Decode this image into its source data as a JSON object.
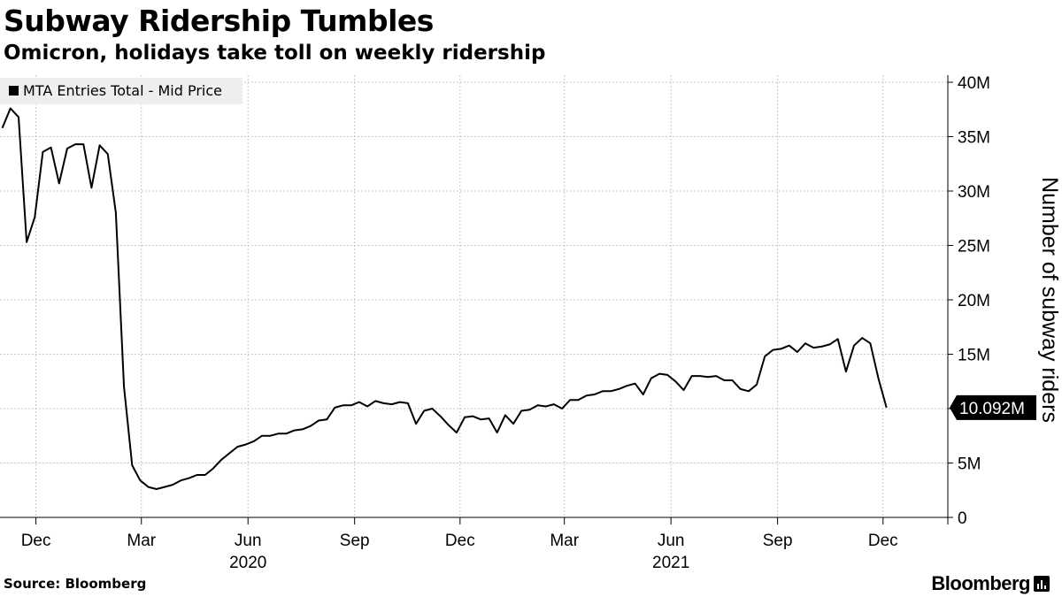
{
  "header": {
    "title": "Subway Ridership Tumbles",
    "subtitle": "Omicron, holidays take toll on weekly ridership"
  },
  "footer": {
    "source": "Source: Bloomberg",
    "brand": "Bloomberg",
    "brand_icon": "bloomberg-terminal-icon"
  },
  "chart_data": {
    "type": "line",
    "title": "Subway Ridership Tumbles",
    "subtitle": "Omicron, holidays take toll on weekly ridership",
    "ylabel": "Number of subway riders",
    "y_unit": "millions",
    "ylim": [
      0,
      40
    ],
    "y_ticks": [
      0,
      5,
      10,
      15,
      20,
      25,
      30,
      35,
      40
    ],
    "y_tick_labels": [
      "0",
      "5M",
      "10M",
      "15M",
      "20M",
      "25M",
      "30M",
      "35M",
      "40M"
    ],
    "x_ticks": [
      {
        "label": "Dec",
        "date": "2019-12-01"
      },
      {
        "label": "Mar",
        "date": "2020-03-01"
      },
      {
        "label": "Jun",
        "date": "2020-06-01"
      },
      {
        "label": "Sep",
        "date": "2020-09-01"
      },
      {
        "label": "Dec",
        "date": "2020-12-01"
      },
      {
        "label": "Mar",
        "date": "2021-03-01"
      },
      {
        "label": "Jun",
        "date": "2021-06-01"
      },
      {
        "label": "Sep",
        "date": "2021-09-01"
      },
      {
        "label": "Dec",
        "date": "2021-12-01"
      }
    ],
    "year_labels": [
      {
        "label": "2020",
        "date": "2020-06-01"
      },
      {
        "label": "2021",
        "date": "2021-06-01"
      }
    ],
    "xlim": [
      "2019-10-31",
      "2022-01-16"
    ],
    "grid": true,
    "legend_position": "top-left",
    "last_value_label": "10.092M",
    "series": [
      {
        "name": "MTA Entries Total - Mid Price",
        "color": "#000000",
        "points": [
          [
            "2019-11-02",
            35.8
          ],
          [
            "2019-11-09",
            37.6
          ],
          [
            "2019-11-16",
            36.8
          ],
          [
            "2019-11-23",
            25.3
          ],
          [
            "2019-11-30",
            27.6
          ],
          [
            "2019-12-07",
            33.6
          ],
          [
            "2019-12-14",
            34.0
          ],
          [
            "2019-12-21",
            30.7
          ],
          [
            "2019-12-28",
            33.9
          ],
          [
            "2020-01-04",
            34.3
          ],
          [
            "2020-01-11",
            34.3
          ],
          [
            "2020-01-18",
            30.3
          ],
          [
            "2020-01-25",
            34.2
          ],
          [
            "2020-02-01",
            33.4
          ],
          [
            "2020-02-08",
            28.0
          ],
          [
            "2020-02-15",
            12.0
          ],
          [
            "2020-02-22",
            4.8
          ],
          [
            "2020-02-29",
            3.4
          ],
          [
            "2020-03-07",
            2.8
          ],
          [
            "2020-03-14",
            2.6
          ],
          [
            "2020-03-21",
            2.8
          ],
          [
            "2020-03-28",
            3.0
          ],
          [
            "2020-04-04",
            3.4
          ],
          [
            "2020-04-11",
            3.6
          ],
          [
            "2020-04-18",
            3.9
          ],
          [
            "2020-04-25",
            3.9
          ],
          [
            "2020-05-02",
            4.5
          ],
          [
            "2020-05-09",
            5.3
          ],
          [
            "2020-05-16",
            5.9
          ],
          [
            "2020-05-23",
            6.5
          ],
          [
            "2020-05-30",
            6.7
          ],
          [
            "2020-06-06",
            7.0
          ],
          [
            "2020-06-13",
            7.5
          ],
          [
            "2020-06-20",
            7.5
          ],
          [
            "2020-06-27",
            7.7
          ],
          [
            "2020-07-04",
            7.7
          ],
          [
            "2020-07-11",
            8.0
          ],
          [
            "2020-07-18",
            8.1
          ],
          [
            "2020-07-25",
            8.4
          ],
          [
            "2020-08-01",
            8.9
          ],
          [
            "2020-08-08",
            9.0
          ],
          [
            "2020-08-15",
            10.1
          ],
          [
            "2020-08-22",
            10.3
          ],
          [
            "2020-08-29",
            10.3
          ],
          [
            "2020-09-05",
            10.6
          ],
          [
            "2020-09-12",
            10.2
          ],
          [
            "2020-09-19",
            10.7
          ],
          [
            "2020-09-26",
            10.5
          ],
          [
            "2020-10-03",
            10.4
          ],
          [
            "2020-10-10",
            10.6
          ],
          [
            "2020-10-17",
            10.5
          ],
          [
            "2020-10-24",
            8.6
          ],
          [
            "2020-10-31",
            9.8
          ],
          [
            "2020-11-07",
            10.0
          ],
          [
            "2020-11-14",
            9.3
          ],
          [
            "2020-11-21",
            8.5
          ],
          [
            "2020-11-28",
            7.8
          ],
          [
            "2020-12-05",
            9.2
          ],
          [
            "2020-12-12",
            9.3
          ],
          [
            "2020-12-19",
            9.0
          ],
          [
            "2020-12-26",
            9.1
          ],
          [
            "2021-01-02",
            7.8
          ],
          [
            "2021-01-09",
            9.4
          ],
          [
            "2021-01-16",
            8.6
          ],
          [
            "2021-01-23",
            9.8
          ],
          [
            "2021-01-30",
            9.9
          ],
          [
            "2021-02-06",
            10.3
          ],
          [
            "2021-02-13",
            10.2
          ],
          [
            "2021-02-20",
            10.4
          ],
          [
            "2021-02-27",
            10.0
          ],
          [
            "2021-03-06",
            10.8
          ],
          [
            "2021-03-13",
            10.8
          ],
          [
            "2021-03-20",
            11.2
          ],
          [
            "2021-03-27",
            11.3
          ],
          [
            "2021-04-03",
            11.6
          ],
          [
            "2021-04-10",
            11.6
          ],
          [
            "2021-04-17",
            11.8
          ],
          [
            "2021-04-24",
            12.1
          ],
          [
            "2021-05-01",
            12.3
          ],
          [
            "2021-05-08",
            11.3
          ],
          [
            "2021-05-15",
            12.8
          ],
          [
            "2021-05-22",
            13.2
          ],
          [
            "2021-05-29",
            13.1
          ],
          [
            "2021-06-05",
            12.5
          ],
          [
            "2021-06-12",
            11.7
          ],
          [
            "2021-06-19",
            13.0
          ],
          [
            "2021-06-26",
            13.0
          ],
          [
            "2021-07-03",
            12.9
          ],
          [
            "2021-07-10",
            13.0
          ],
          [
            "2021-07-17",
            12.6
          ],
          [
            "2021-07-24",
            12.6
          ],
          [
            "2021-07-31",
            11.8
          ],
          [
            "2021-08-07",
            11.6
          ],
          [
            "2021-08-14",
            12.2
          ],
          [
            "2021-08-21",
            14.8
          ],
          [
            "2021-08-28",
            15.4
          ],
          [
            "2021-09-04",
            15.5
          ],
          [
            "2021-09-11",
            15.8
          ],
          [
            "2021-09-18",
            15.2
          ],
          [
            "2021-09-25",
            16.0
          ],
          [
            "2021-10-02",
            15.6
          ],
          [
            "2021-10-09",
            15.7
          ],
          [
            "2021-10-16",
            15.9
          ],
          [
            "2021-10-23",
            16.4
          ],
          [
            "2021-10-30",
            13.4
          ],
          [
            "2021-11-06",
            15.8
          ],
          [
            "2021-11-13",
            16.5
          ],
          [
            "2021-11-20",
            16.0
          ],
          [
            "2021-11-27",
            12.8
          ],
          [
            "2021-12-04",
            10.092
          ]
        ]
      }
    ]
  }
}
